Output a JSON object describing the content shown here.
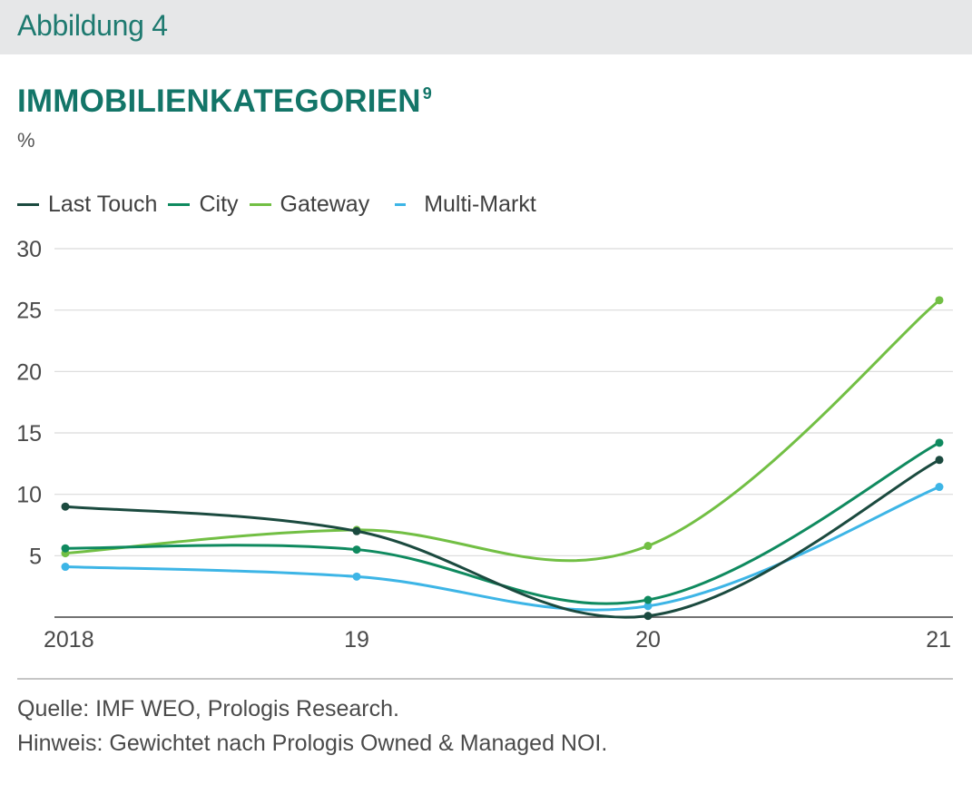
{
  "header": {
    "figure_label": "Abbildung 4"
  },
  "chart_data": {
    "type": "line",
    "title": "IMMOBILIENKATEGORIEN",
    "title_footnote": "9",
    "ylabel": "%",
    "xlabel": "",
    "categories": [
      "2018",
      "19",
      "20",
      "21"
    ],
    "ylim": [
      0,
      30
    ],
    "yticks": [
      "5",
      "10",
      "15",
      "20",
      "25",
      "30"
    ],
    "grid": true,
    "legend_position": "top-left",
    "series": [
      {
        "name": "Last Touch",
        "color": "#1b4a3f",
        "values": [
          9.0,
          7.0,
          0.1,
          12.8
        ]
      },
      {
        "name": "City",
        "color": "#0f8a5f",
        "values": [
          5.6,
          5.5,
          1.4,
          14.2
        ]
      },
      {
        "name": "Gateway",
        "color": "#72bf44",
        "values": [
          5.2,
          7.1,
          5.8,
          25.8
        ]
      },
      {
        "name": "Multi-Markt",
        "color": "#3db5e6",
        "values": [
          4.1,
          3.3,
          0.9,
          10.6
        ]
      }
    ]
  },
  "footer": {
    "source": "Quelle: IMF WEO, Prologis Research.",
    "note": "Hinweis: Gewichtet nach Prologis Owned & Managed NOI."
  }
}
